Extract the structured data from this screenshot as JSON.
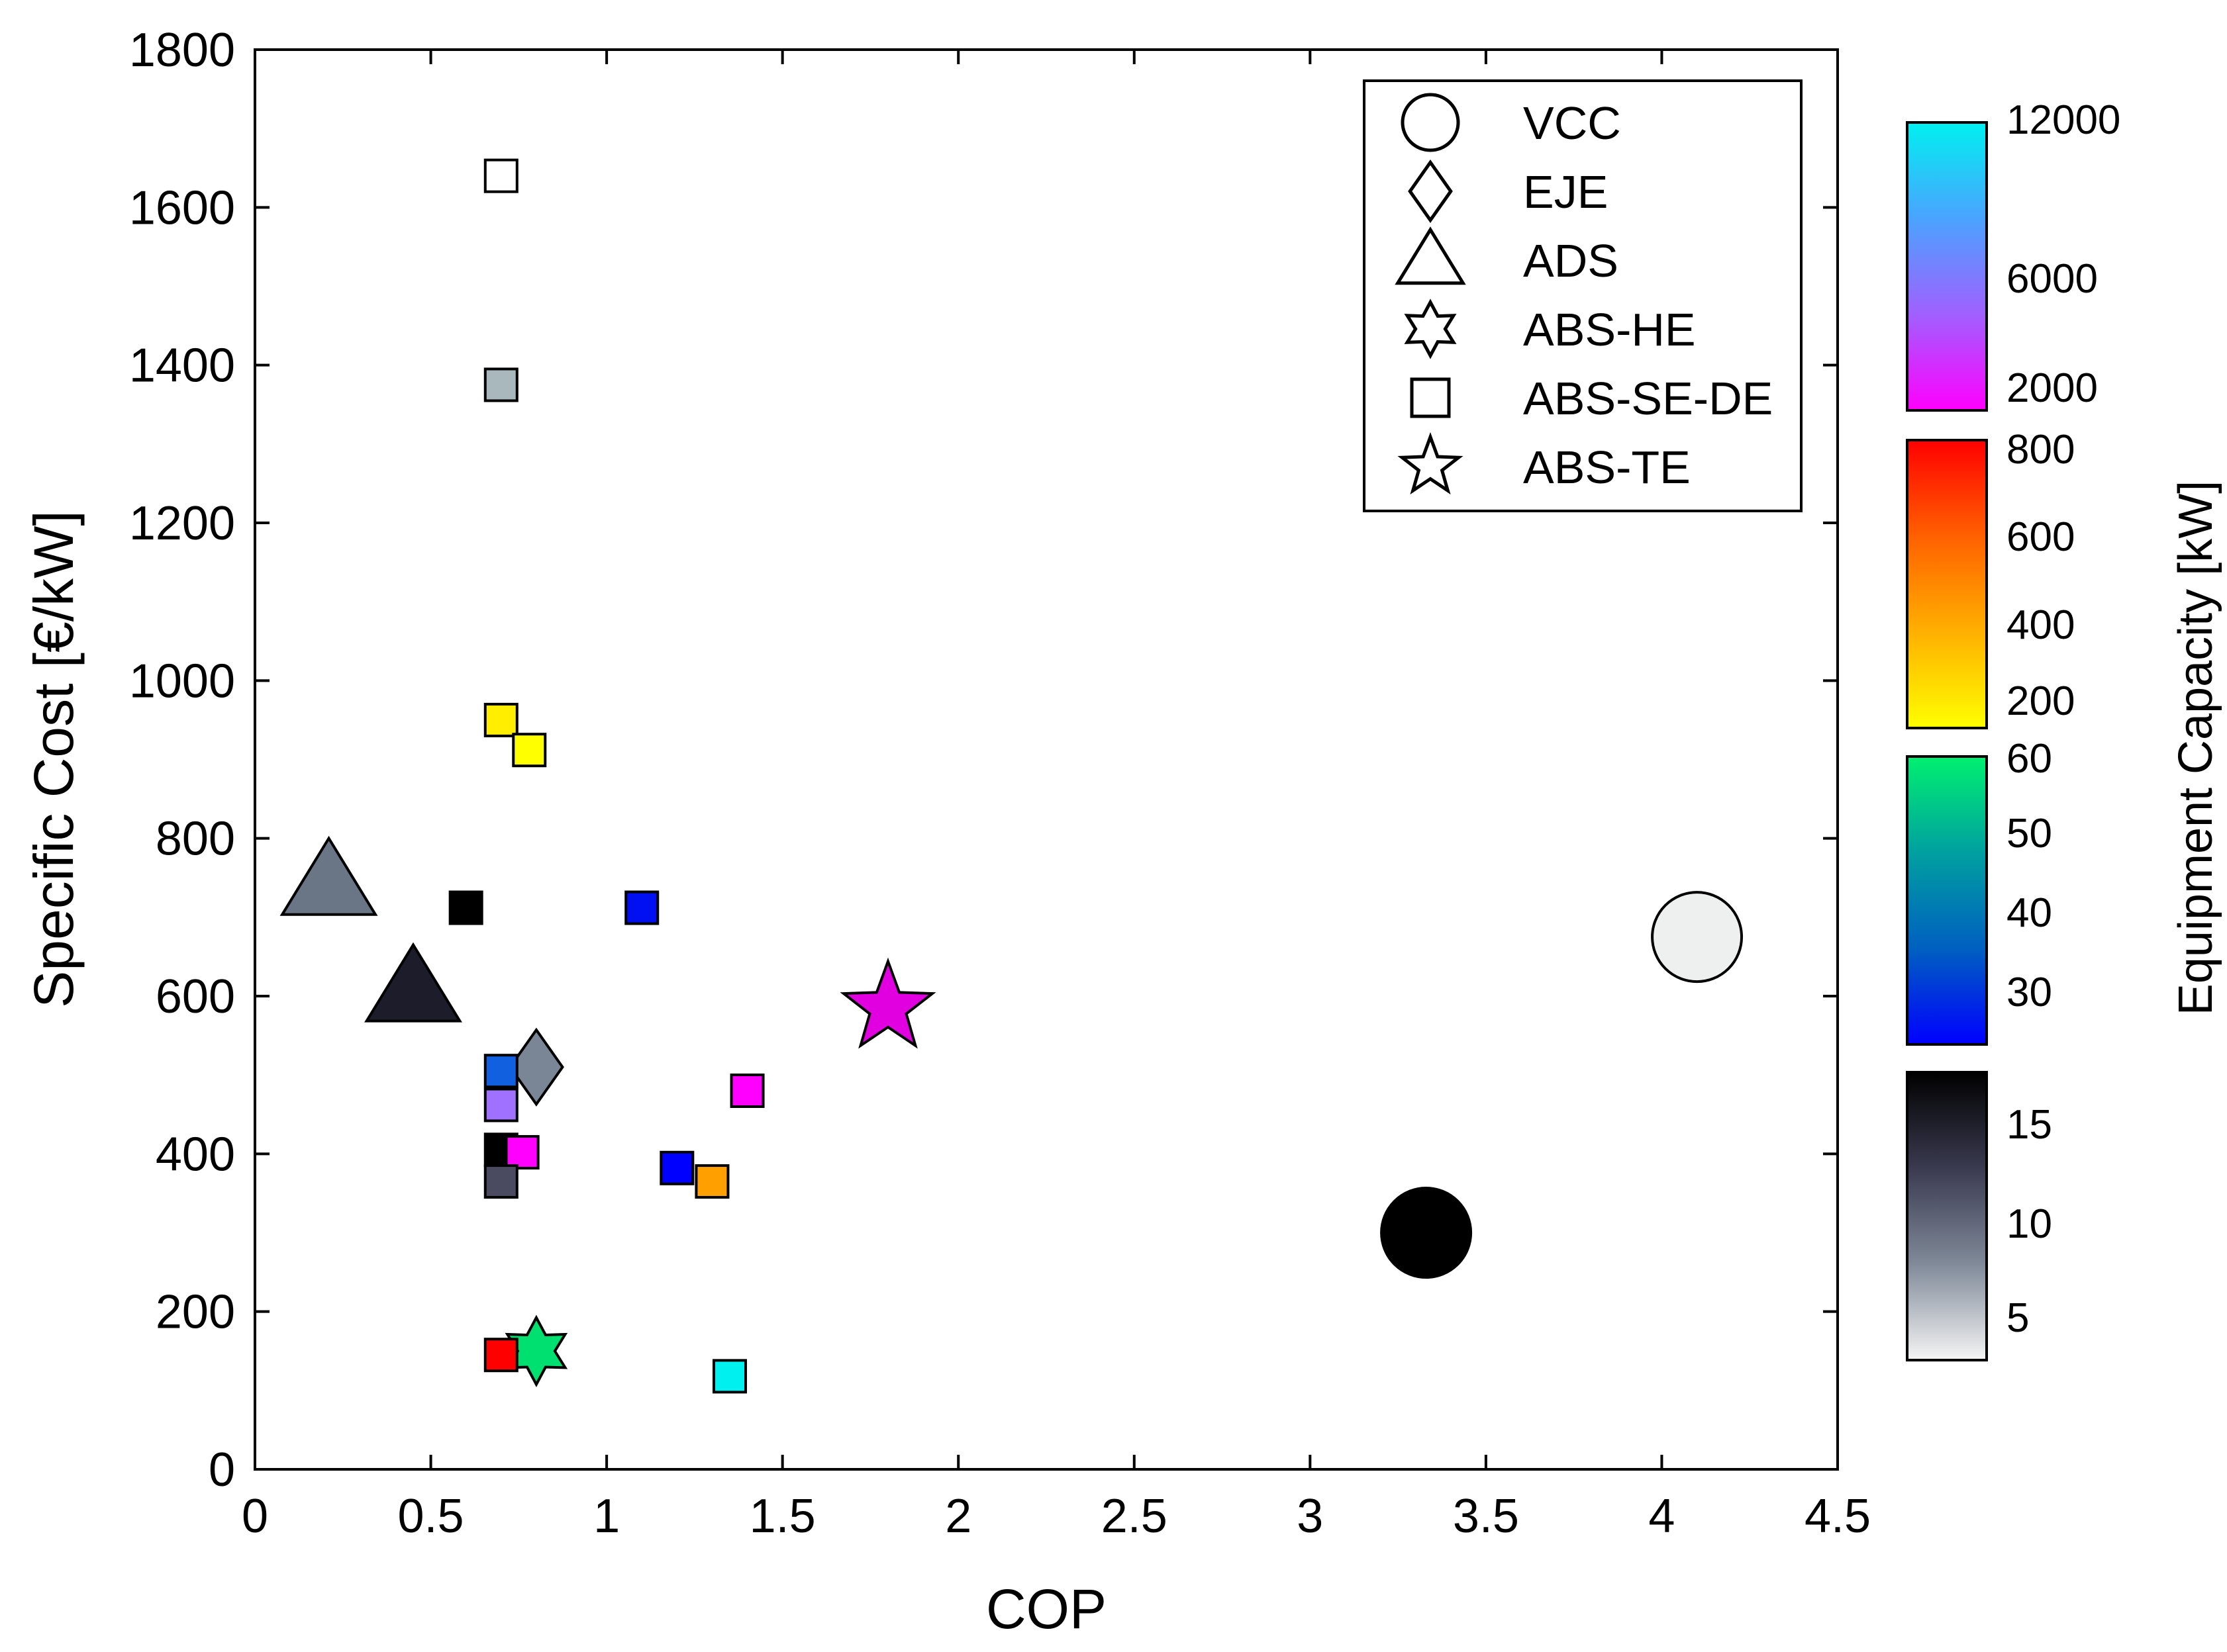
{
  "chart_data": {
    "type": "scatter",
    "title": "",
    "xlabel": "COP",
    "ylabel": "Specific  Cost   [€/kW]",
    "xlim": [
      0,
      4.5
    ],
    "ylim": [
      0,
      1800
    ],
    "xticks": [
      0,
      0.5,
      1,
      1.5,
      2,
      2.5,
      3,
      3.5,
      4,
      4.5
    ],
    "xtick_labels": [
      "0",
      "0.5",
      "1",
      "1.5",
      "2",
      "2.5",
      "3",
      "3.5",
      "4",
      "4.5"
    ],
    "yticks": [
      0,
      200,
      400,
      600,
      800,
      1000,
      1200,
      1400,
      1600,
      1800
    ],
    "ytick_labels": [
      "0",
      "200",
      "400",
      "600",
      "800",
      "1000",
      "1200",
      "1400",
      "1600",
      "1800"
    ],
    "grid": false,
    "legend": {
      "position": "top-right",
      "entries": [
        {
          "label": "VCC",
          "marker": "circle"
        },
        {
          "label": "EJE",
          "marker": "diamond"
        },
        {
          "label": "ADS",
          "marker": "triangle"
        },
        {
          "label": "ABS-HE",
          "marker": "hexagram"
        },
        {
          "label": "ABS-SE-DE",
          "marker": "square"
        },
        {
          "label": "ABS-TE",
          "marker": "pentagram"
        }
      ]
    },
    "colorbar": {
      "title": "Equipment Capacity [kW]",
      "segments": [
        {
          "name": "high",
          "labels": [
            "12000",
            "6000",
            "2000"
          ],
          "colors": [
            "#00f0f0",
            "#4aa3ff",
            "#a060ff",
            "#ff00ff"
          ]
        },
        {
          "name": "medium",
          "labels": [
            "800",
            "600",
            "400",
            "200"
          ],
          "colors": [
            "#ff0000",
            "#ff6000",
            "#ffb000",
            "#ffff00"
          ]
        },
        {
          "name": "low",
          "labels": [
            "60",
            "50",
            "40",
            "30"
          ],
          "colors": [
            "#00f070",
            "#00a0a0",
            "#0060c0",
            "#0000ff"
          ]
        },
        {
          "name": "small",
          "labels": [
            "15",
            "10",
            "5"
          ],
          "colors": [
            "#000000",
            "#3a3a50",
            "#808a99",
            "#f5f5f5"
          ]
        }
      ]
    },
    "series": [
      {
        "name": "VCC",
        "marker": "circle",
        "points": [
          {
            "x": 3.33,
            "y": 300,
            "color": "#000000"
          },
          {
            "x": 4.1,
            "y": 675,
            "color": "#eef0f0"
          }
        ]
      },
      {
        "name": "EJE",
        "marker": "diamond",
        "points": [
          {
            "x": 0.8,
            "y": 510,
            "color": "#7a8595"
          }
        ]
      },
      {
        "name": "ADS",
        "marker": "triangle",
        "points": [
          {
            "x": 0.21,
            "y": 745,
            "color": "#6a7585"
          },
          {
            "x": 0.45,
            "y": 610,
            "color": "#1c1c2a"
          }
        ]
      },
      {
        "name": "ABS-HE",
        "marker": "hexagram",
        "points": [
          {
            "x": 0.8,
            "y": 150,
            "color": "#00e070"
          }
        ]
      },
      {
        "name": "ABS-SE-DE",
        "marker": "square",
        "points": [
          {
            "x": 0.7,
            "y": 1640,
            "color": "#ffffff"
          },
          {
            "x": 0.7,
            "y": 1375,
            "color": "#a8b8bc"
          },
          {
            "x": 0.7,
            "y": 950,
            "color": "#ffee00"
          },
          {
            "x": 0.78,
            "y": 912,
            "color": "#ffff00"
          },
          {
            "x": 0.6,
            "y": 712,
            "color": "#000000"
          },
          {
            "x": 1.1,
            "y": 712,
            "color": "#0010f0"
          },
          {
            "x": 0.7,
            "y": 505,
            "color": "#1060e0"
          },
          {
            "x": 0.7,
            "y": 462,
            "color": "#a070ff"
          },
          {
            "x": 0.7,
            "y": 405,
            "color": "#000000"
          },
          {
            "x": 0.76,
            "y": 402,
            "color": "#ff00ff"
          },
          {
            "x": 0.7,
            "y": 365,
            "color": "#4a4a60"
          },
          {
            "x": 1.4,
            "y": 480,
            "color": "#ff00ff"
          },
          {
            "x": 1.2,
            "y": 382,
            "color": "#0000ff"
          },
          {
            "x": 1.3,
            "y": 365,
            "color": "#ffa000"
          },
          {
            "x": 0.7,
            "y": 145,
            "color": "#ff0000"
          },
          {
            "x": 1.35,
            "y": 118,
            "color": "#00f0f0"
          }
        ]
      },
      {
        "name": "ABS-TE",
        "marker": "pentagram",
        "points": [
          {
            "x": 1.8,
            "y": 585,
            "color": "#e000e0"
          }
        ]
      }
    ]
  }
}
